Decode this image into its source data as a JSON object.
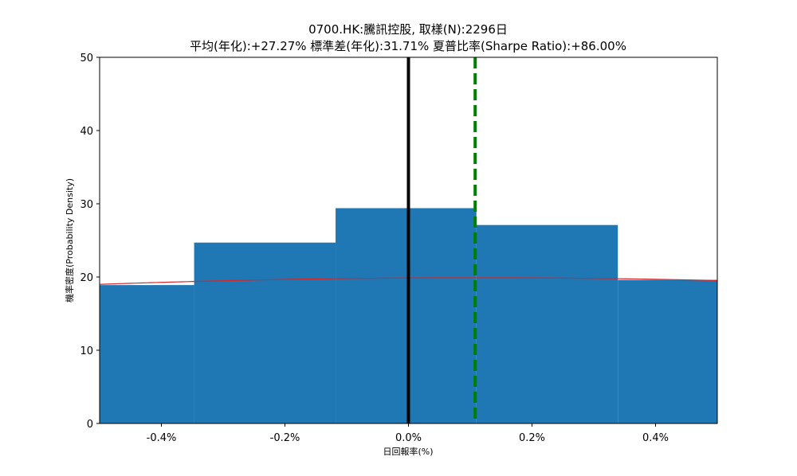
{
  "chart_data": {
    "type": "bar",
    "title_line1": "0700.HK:騰訊控股, 取樣(N):2296日",
    "title_line2": "平均(年化):+27.27% 標準差(年化):31.71% 夏普比率(Sharpe Ratio):+86.00%",
    "xlabel": "日回報率(%)",
    "ylabel": "機率密度(Probability Density)",
    "xlim": [
      -0.5,
      0.5
    ],
    "ylim": [
      0,
      50
    ],
    "x_ticks": [
      -0.4,
      -0.2,
      0.0,
      0.2,
      0.4
    ],
    "x_tick_labels": [
      "-0.4%",
      "-0.2%",
      "0.0%",
      "0.2%",
      "0.4%"
    ],
    "y_ticks": [
      0,
      10,
      20,
      30,
      40,
      50
    ],
    "y_tick_labels": [
      "0",
      "10",
      "20",
      "30",
      "40",
      "50"
    ],
    "bins": [
      {
        "x0": -0.576,
        "x1": -0.347,
        "value": 18.9
      },
      {
        "x0": -0.347,
        "x1": -0.118,
        "value": 24.7
      },
      {
        "x0": -0.118,
        "x1": 0.11,
        "value": 29.4
      },
      {
        "x0": 0.11,
        "x1": 0.339,
        "value": 27.1
      },
      {
        "x0": 0.339,
        "x1": 0.568,
        "value": 19.6
      }
    ],
    "bar_color": "#1f77b4",
    "normal_curve": {
      "mean": 0.108,
      "std": 2.0,
      "peak": 19.9,
      "color": "#d62728"
    },
    "zero_line": {
      "x": 0.0,
      "color": "#000000"
    },
    "mean_line": {
      "x": 0.108,
      "color": "#008000",
      "style": "dashed"
    },
    "grid": false
  }
}
